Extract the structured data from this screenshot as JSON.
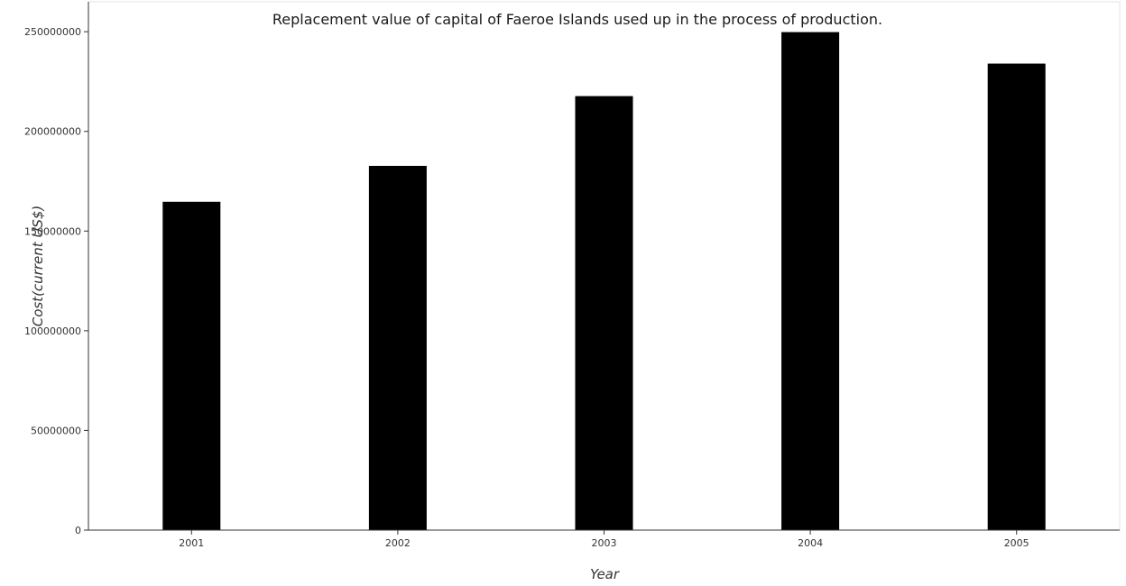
{
  "chart_data": {
    "type": "bar",
    "title": "Replacement value of capital of Faeroe Islands used up in the process of production.",
    "xlabel": "Year",
    "ylabel": "Cost(current US$)",
    "categories": [
      "2001",
      "2002",
      "2003",
      "2004",
      "2005"
    ],
    "values": [
      164700000,
      182700000,
      217700000,
      249800000,
      234000000
    ],
    "ylim": [
      0,
      265000000
    ],
    "yticks": [
      0,
      50000000,
      100000000,
      150000000,
      200000000,
      250000000
    ],
    "ytick_labels": [
      "0",
      "50000000",
      "100000000",
      "150000000",
      "200000000",
      "250000000"
    ],
    "grid": false,
    "bar_color": "#000000"
  }
}
